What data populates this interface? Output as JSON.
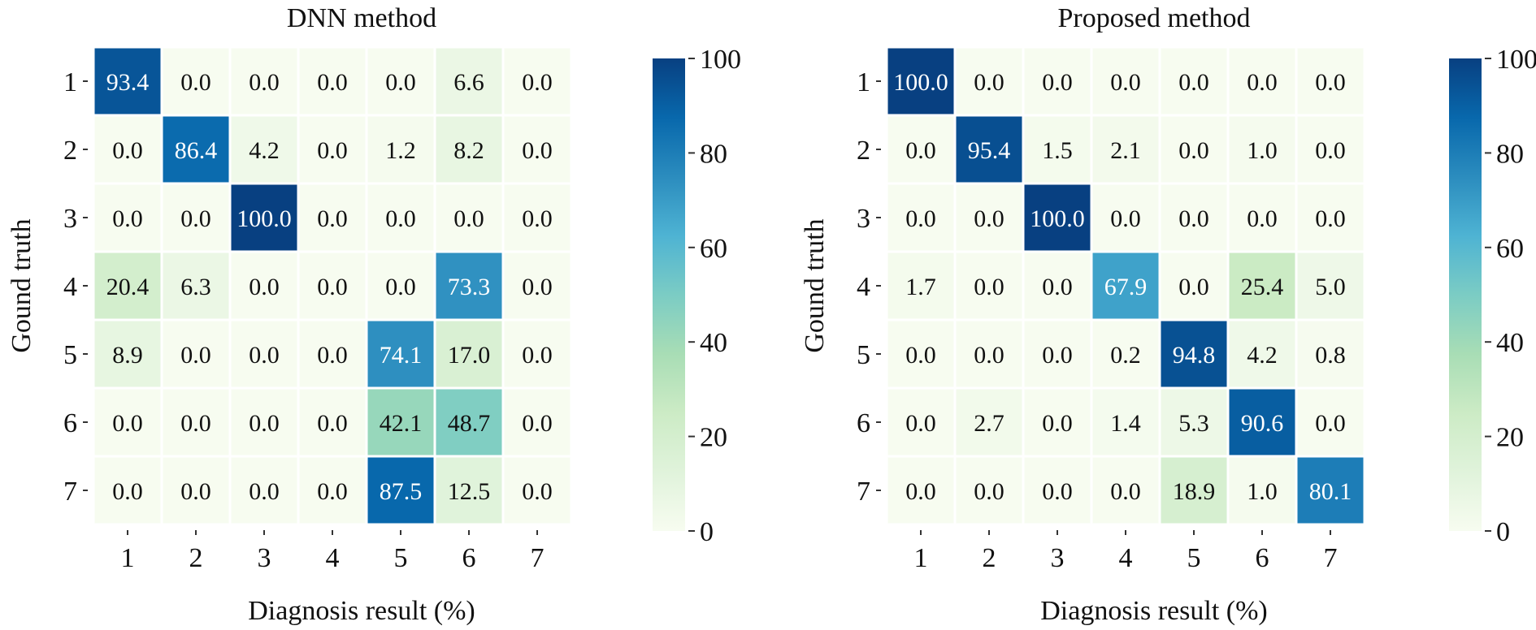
{
  "chart_data": [
    {
      "type": "heatmap",
      "title": "DNN method",
      "xlabel": "Diagnosis result (%)",
      "ylabel": "Gound truth",
      "x_categories": [
        "1",
        "2",
        "3",
        "4",
        "5",
        "6",
        "7"
      ],
      "y_categories": [
        "1",
        "2",
        "3",
        "4",
        "5",
        "6",
        "7"
      ],
      "values": [
        [
          93.4,
          0.0,
          0.0,
          0.0,
          0.0,
          6.6,
          0.0
        ],
        [
          0.0,
          86.4,
          4.2,
          0.0,
          1.2,
          8.2,
          0.0
        ],
        [
          0.0,
          0.0,
          100.0,
          0.0,
          0.0,
          0.0,
          0.0
        ],
        [
          20.4,
          6.3,
          0.0,
          0.0,
          0.0,
          73.3,
          0.0
        ],
        [
          8.9,
          0.0,
          0.0,
          0.0,
          74.1,
          17.0,
          0.0
        ],
        [
          0.0,
          0.0,
          0.0,
          0.0,
          42.1,
          48.7,
          0.0
        ],
        [
          0.0,
          0.0,
          0.0,
          0.0,
          87.5,
          12.5,
          0.0
        ]
      ],
      "colorbar": {
        "range": [
          0,
          100
        ],
        "ticks": [
          "0",
          "20",
          "40",
          "60",
          "80",
          "100"
        ]
      },
      "colormap": "GnBu"
    },
    {
      "type": "heatmap",
      "title": "Proposed method",
      "xlabel": "Diagnosis result (%)",
      "ylabel": "Gound truth",
      "x_categories": [
        "1",
        "2",
        "3",
        "4",
        "5",
        "6",
        "7"
      ],
      "y_categories": [
        "1",
        "2",
        "3",
        "4",
        "5",
        "6",
        "7"
      ],
      "values": [
        [
          100.0,
          0.0,
          0.0,
          0.0,
          0.0,
          0.0,
          0.0
        ],
        [
          0.0,
          95.4,
          1.5,
          2.1,
          0.0,
          1.0,
          0.0
        ],
        [
          0.0,
          0.0,
          100.0,
          0.0,
          0.0,
          0.0,
          0.0
        ],
        [
          1.7,
          0.0,
          0.0,
          67.9,
          0.0,
          25.4,
          5.0
        ],
        [
          0.0,
          0.0,
          0.0,
          0.2,
          94.8,
          4.2,
          0.8
        ],
        [
          0.0,
          2.7,
          0.0,
          1.4,
          5.3,
          90.6,
          0.0
        ],
        [
          0.0,
          0.0,
          0.0,
          0.0,
          18.9,
          1.0,
          80.1
        ]
      ],
      "colorbar": {
        "range": [
          0,
          100
        ],
        "ticks": [
          "0",
          "20",
          "40",
          "60",
          "80",
          "100"
        ]
      },
      "colormap": "GnBu"
    }
  ]
}
